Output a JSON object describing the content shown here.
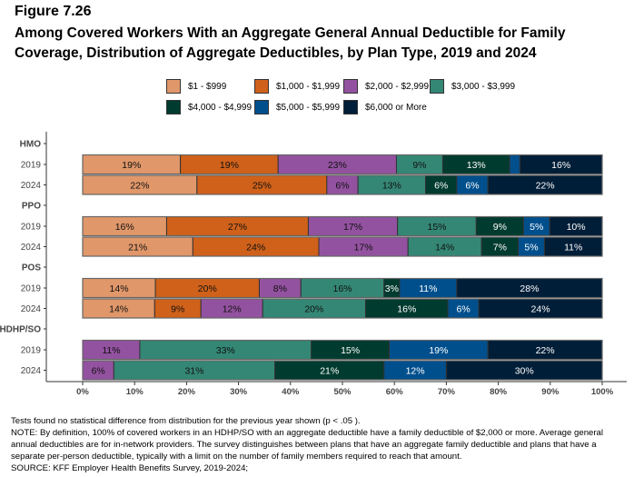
{
  "chart_data": {
    "type": "bar",
    "orientation": "horizontal",
    "stacked": true,
    "figure_label": "Figure 7.26",
    "title": "Among Covered Workers With an Aggregate General Annual Deductible for Family Coverage, Distribution of Aggregate Deductibles, by Plan Type, 2019 and 2024",
    "xlim": [
      0,
      100
    ],
    "x_ticks": [
      "0%",
      "10%",
      "20%",
      "30%",
      "40%",
      "50%",
      "60%",
      "70%",
      "80%",
      "90%",
      "100%"
    ],
    "legend_position": "top",
    "series": [
      {
        "name": "$1 - $999",
        "color": "#e0976a"
      },
      {
        "name": "$1,000 - $1,999",
        "color": "#d0611a"
      },
      {
        "name": "$2,000 - $2,999",
        "color": "#9352a0"
      },
      {
        "name": "$3,000 - $3,999",
        "color": "#348775"
      },
      {
        "name": "$4,000 - $4,999",
        "color": "#003b2f"
      },
      {
        "name": "$5,000 - $5,999",
        "color": "#004f8d"
      },
      {
        "name": "$6,000 or More",
        "color": "#011e38"
      }
    ],
    "groups": [
      {
        "name": "HMO",
        "rows": [
          {
            "year": "2019",
            "values": [
              19,
              19,
              23,
              9,
              13,
              2,
              16
            ],
            "labels": [
              "19%",
              "19%",
              "23%",
              "9%",
              "13%",
              "",
              "16%"
            ]
          },
          {
            "year": "2024",
            "values": [
              22,
              25,
              6,
              13,
              6,
              6,
              22
            ],
            "labels": [
              "22%",
              "25%",
              "6%",
              "13%",
              "6%",
              "6%",
              "22%"
            ]
          }
        ]
      },
      {
        "name": "PPO",
        "rows": [
          {
            "year": "2019",
            "values": [
              16,
              27,
              17,
              15,
              9,
              5,
              10
            ],
            "labels": [
              "16%",
              "27%",
              "17%",
              "15%",
              "9%",
              "5%",
              "10%"
            ]
          },
          {
            "year": "2024",
            "values": [
              21,
              24,
              17,
              14,
              7,
              5,
              11
            ],
            "labels": [
              "21%",
              "24%",
              "17%",
              "14%",
              "7%",
              "5%",
              "11%"
            ]
          }
        ]
      },
      {
        "name": "POS",
        "rows": [
          {
            "year": "2019",
            "values": [
              14,
              20,
              8,
              16,
              3,
              11,
              28
            ],
            "labels": [
              "14%",
              "20%",
              "8%",
              "16%",
              "3%",
              "11%",
              "28%"
            ]
          },
          {
            "year": "2024",
            "values": [
              14,
              9,
              12,
              20,
              16,
              6,
              24
            ],
            "labels": [
              "14%",
              "9%",
              "12%",
              "20%",
              "16%",
              "6%",
              "24%"
            ]
          }
        ]
      },
      {
        "name": "HDHP/SO",
        "rows": [
          {
            "year": "2019",
            "values": [
              0,
              0,
              11,
              33,
              15,
              19,
              22
            ],
            "labels": [
              "",
              "",
              "11%",
              "33%",
              "15%",
              "19%",
              "22%"
            ]
          },
          {
            "year": "2024",
            "values": [
              0,
              0,
              6,
              31,
              21,
              12,
              30
            ],
            "labels": [
              "",
              "",
              "6%",
              "31%",
              "21%",
              "12%",
              "30%"
            ]
          }
        ]
      }
    ]
  },
  "notes": [
    "Tests found no statistical difference from distribution for the previous year shown (p < .05 ).",
    "NOTE: By definition, 100% of covered workers in an HDHP/SO with an aggregate deductible have a family deductible of $2,000 or more. Average general annual deductibles are for in-network providers. The survey distinguishes between plans that have an aggregate family deductible and plans that have a separate per-person deductible, typically with a limit on the number of family members required to reach that amount.",
    "SOURCE: KFF Employer Health Benefits Survey, 2019-2024;"
  ]
}
